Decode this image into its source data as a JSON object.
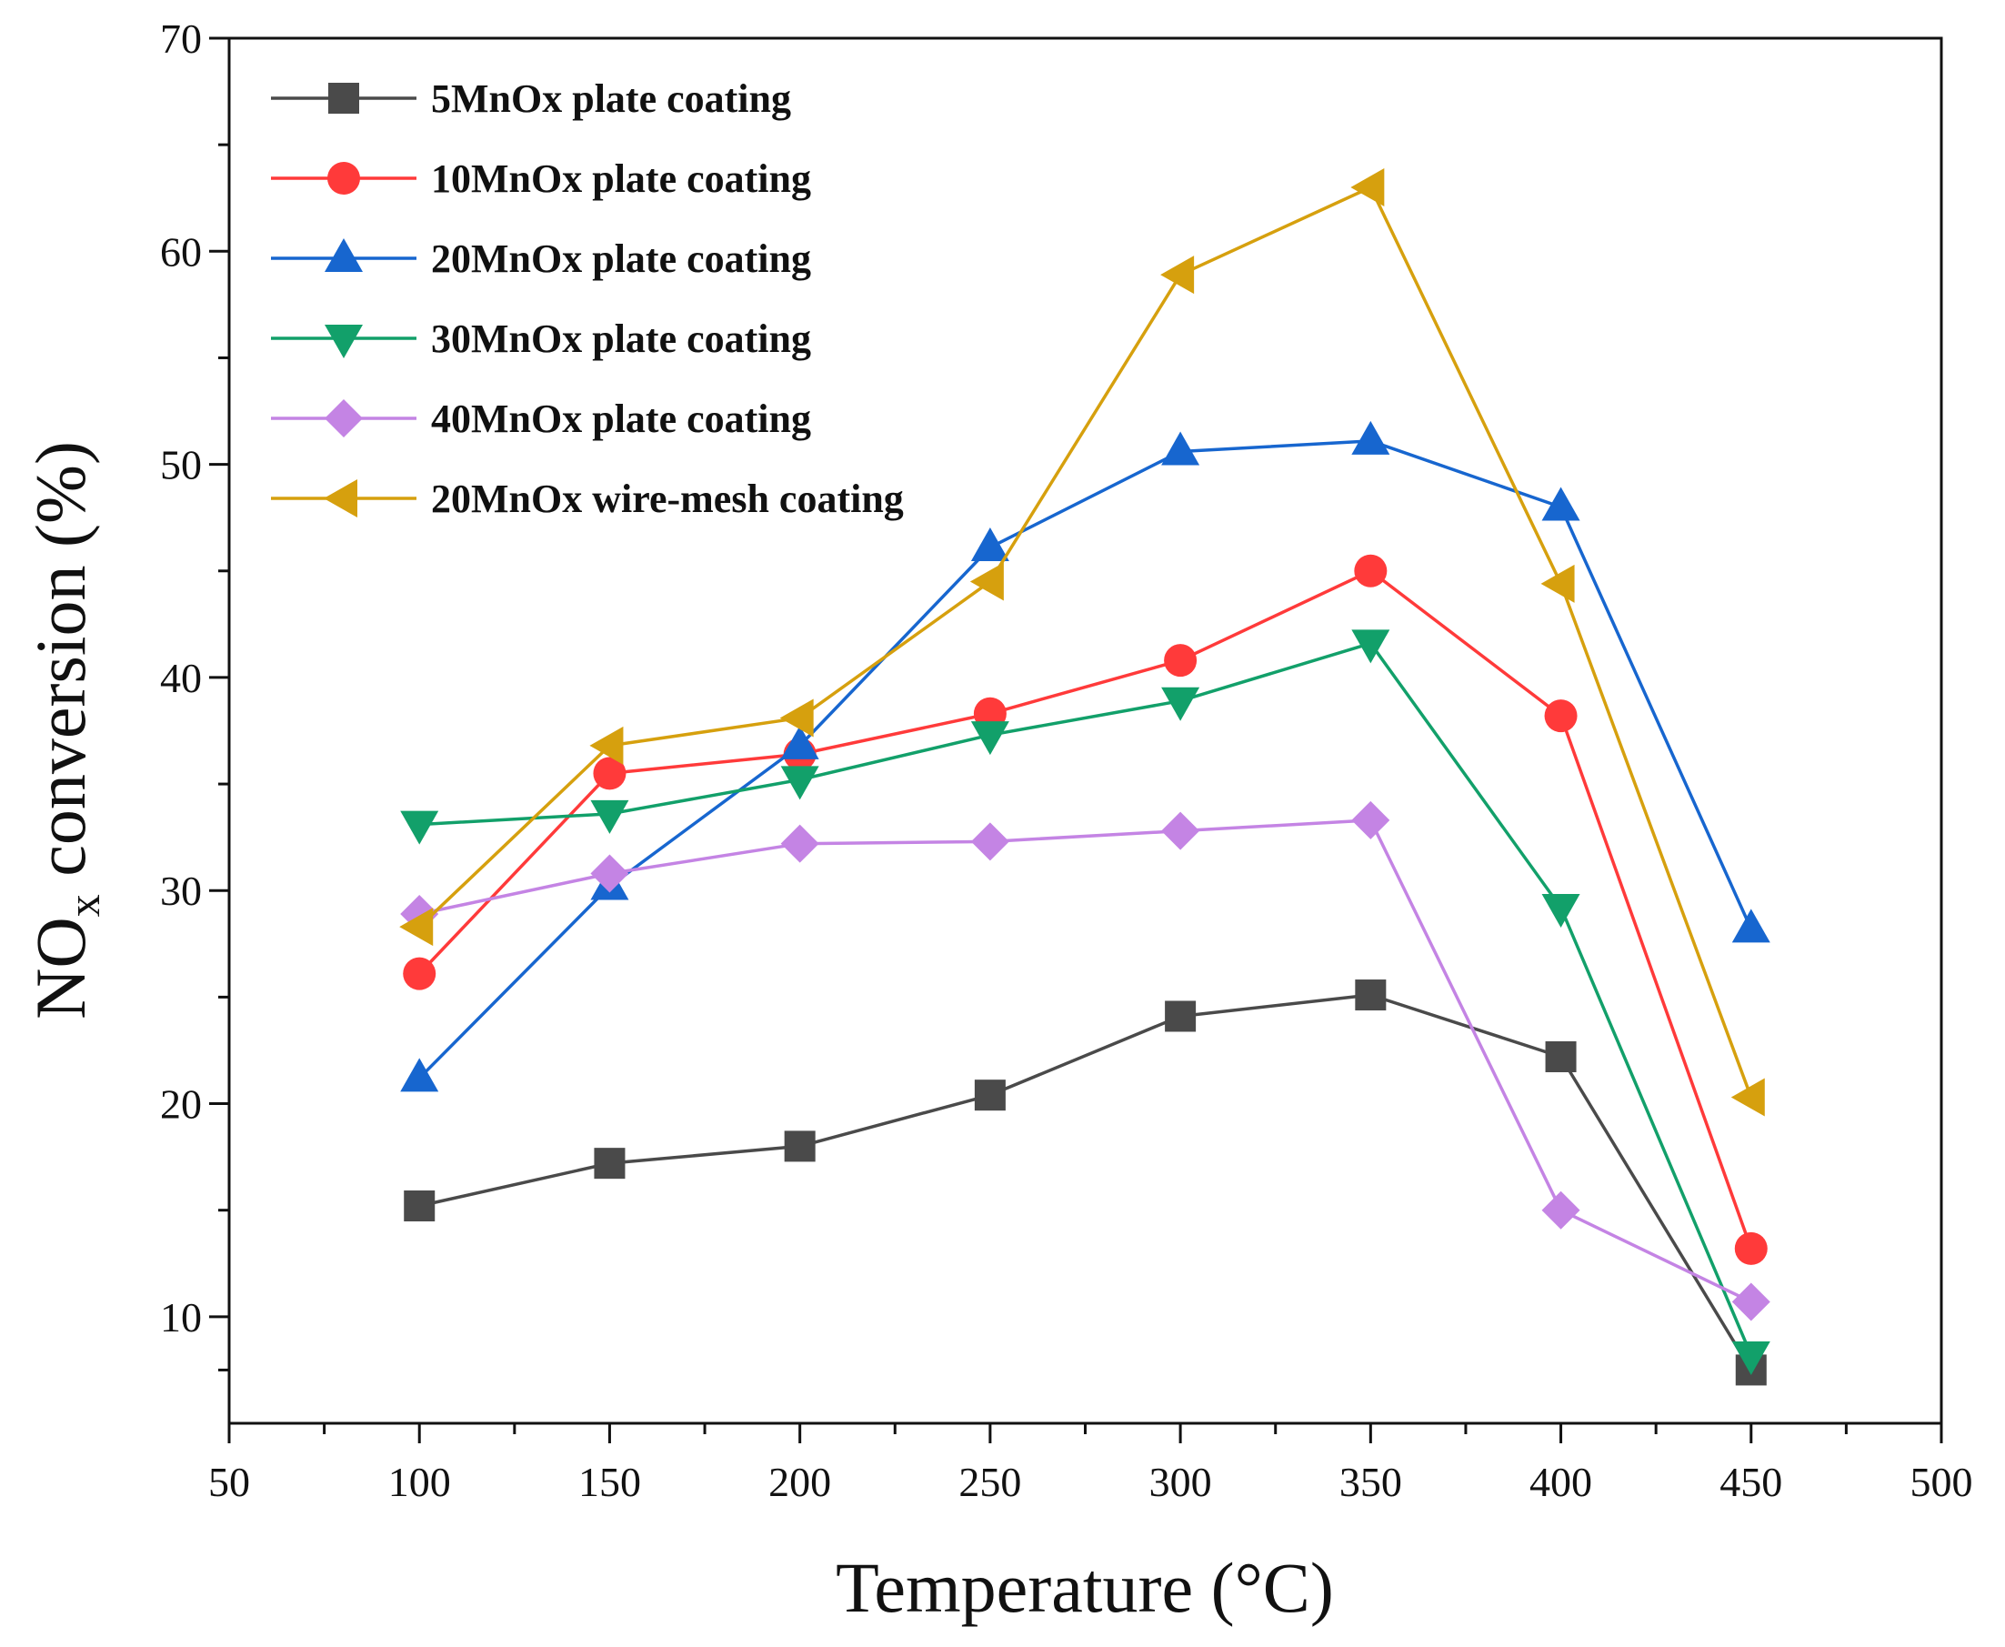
{
  "chart_data": {
    "type": "line",
    "title": "",
    "xlabel": "Temperature (°C)",
    "ylabel": "NO",
    "ylabel_subscript": "x",
    "ylabel_suffix": " conversion (%)",
    "xlim": [
      50,
      500
    ],
    "ylim": [
      5,
      70
    ],
    "x_ticks": [
      50,
      100,
      150,
      200,
      250,
      300,
      350,
      400,
      450,
      500
    ],
    "y_ticks": [
      10,
      20,
      30,
      40,
      50,
      60,
      70
    ],
    "x_tick_labels": [
      "50",
      "100",
      "150",
      "200",
      "250",
      "300",
      "350",
      "400",
      "450",
      "500"
    ],
    "y_tick_labels": [
      "10",
      "20",
      "30",
      "40",
      "50",
      "60",
      "70"
    ],
    "x": [
      100,
      150,
      200,
      250,
      300,
      350,
      400,
      450
    ],
    "legend_position": "top-left",
    "series": [
      {
        "name": "5MnOx plate coating",
        "marker": "square",
        "color": "#4a4a4a",
        "values": [
          15.2,
          17.2,
          18.0,
          20.4,
          24.1,
          25.1,
          22.2,
          7.5
        ]
      },
      {
        "name": "10MnOx plate coating",
        "marker": "circle",
        "color": "#ff3a3a",
        "values": [
          26.1,
          35.5,
          36.4,
          38.3,
          40.8,
          45.0,
          38.2,
          13.2
        ]
      },
      {
        "name": "20MnOx plate coating",
        "marker": "triangle-up",
        "color": "#1766cf",
        "values": [
          21.2,
          30.2,
          36.8,
          46.1,
          50.6,
          51.1,
          48.0,
          28.2
        ]
      },
      {
        "name": "30MnOx plate coating",
        "marker": "triangle-down",
        "color": "#12a06a",
        "values": [
          33.1,
          33.6,
          35.2,
          37.3,
          38.9,
          41.6,
          29.2,
          8.2
        ]
      },
      {
        "name": "40MnOx plate coating",
        "marker": "diamond",
        "color": "#c484e4",
        "values": [
          28.9,
          30.8,
          32.2,
          32.3,
          32.8,
          33.3,
          15.0,
          10.7
        ]
      },
      {
        "name": "20MnOx wire-mesh coating",
        "marker": "triangle-left",
        "color": "#d6a00e",
        "values": [
          28.3,
          36.8,
          38.1,
          44.5,
          58.9,
          63.0,
          44.4,
          20.3
        ]
      }
    ]
  }
}
